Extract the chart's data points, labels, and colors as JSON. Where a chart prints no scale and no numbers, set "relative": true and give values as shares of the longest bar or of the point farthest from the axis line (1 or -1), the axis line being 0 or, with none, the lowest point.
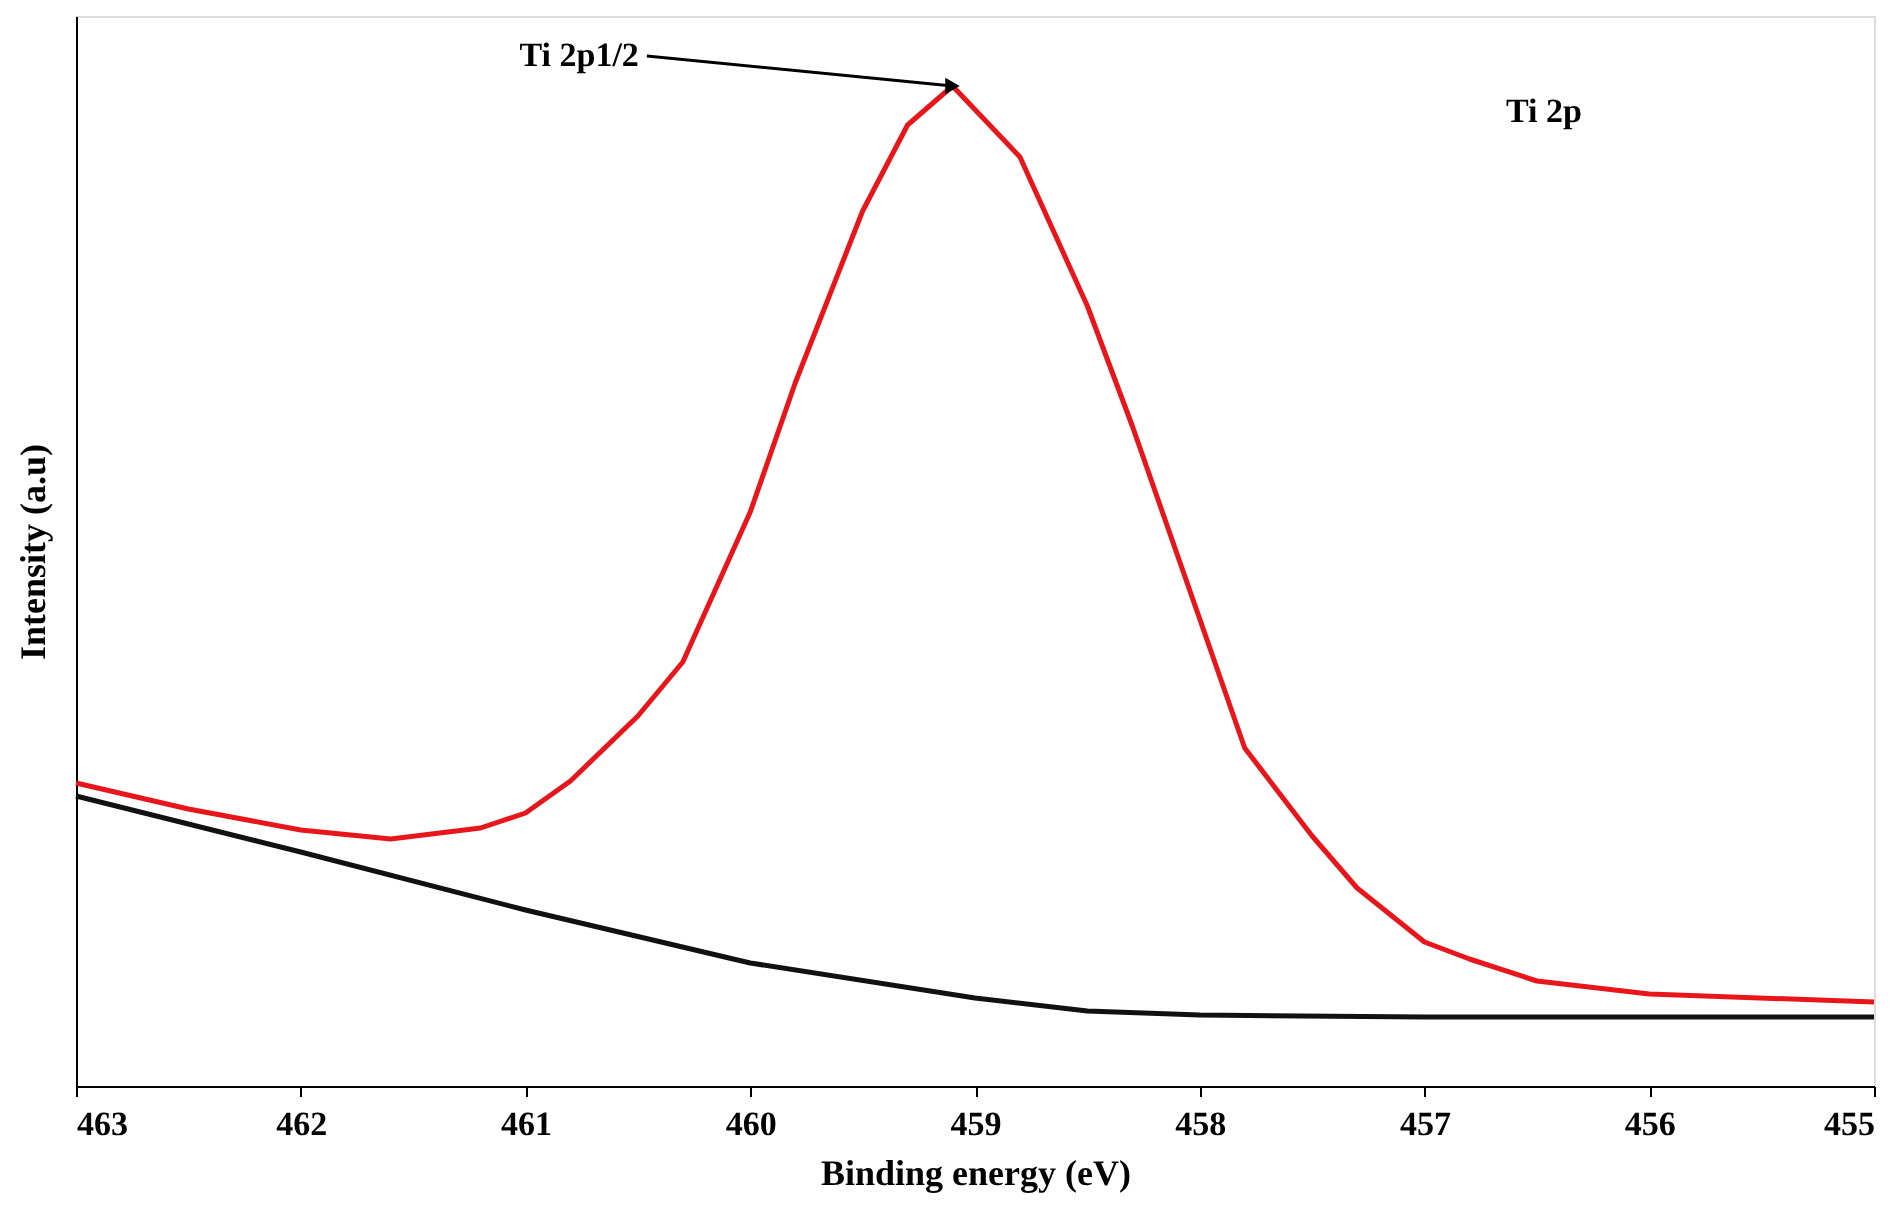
{
  "chart_data": {
    "type": "line",
    "relative": true,
    "xlabel": "Binding energy (eV)",
    "ylabel": "Intensity (a.u)",
    "xlim": [
      463,
      455
    ],
    "xticks": [
      463,
      462,
      461,
      460,
      459,
      458,
      457,
      456,
      455
    ],
    "grid": false,
    "marker": "none",
    "line_style": "solid",
    "series": [
      {
        "color": "#e8161b",
        "x": [
          463,
          462.5,
          462,
          461.6,
          461.2,
          461,
          460.8,
          460.5,
          460.3,
          460,
          459.8,
          459.5,
          459.3,
          459.1,
          458.8,
          458.5,
          458.3,
          458,
          457.8,
          457.5,
          457.3,
          457,
          456.8,
          456.5,
          456,
          455
        ],
        "values": [
          0.303,
          0.277,
          0.256,
          0.247,
          0.258,
          0.273,
          0.305,
          0.37,
          0.424,
          0.574,
          0.703,
          0.875,
          0.961,
          1,
          0.929,
          0.78,
          0.66,
          0.467,
          0.338,
          0.25,
          0.198,
          0.144,
          0.127,
          0.105,
          0.092,
          0.084
        ]
      },
      {
        "color": "#111111",
        "x": [
          463,
          462,
          461,
          460,
          459,
          458.5,
          458,
          457,
          456,
          455
        ],
        "values": [
          0.29,
          0.234,
          0.176,
          0.123,
          0.088,
          0.075,
          0.071,
          0.069,
          0.069,
          0.069
        ]
      }
    ],
    "annotations": [
      {
        "text": "Ti 2p1/2",
        "x": 459.1,
        "y": 1
      },
      "Ti 2p"
    ]
  }
}
